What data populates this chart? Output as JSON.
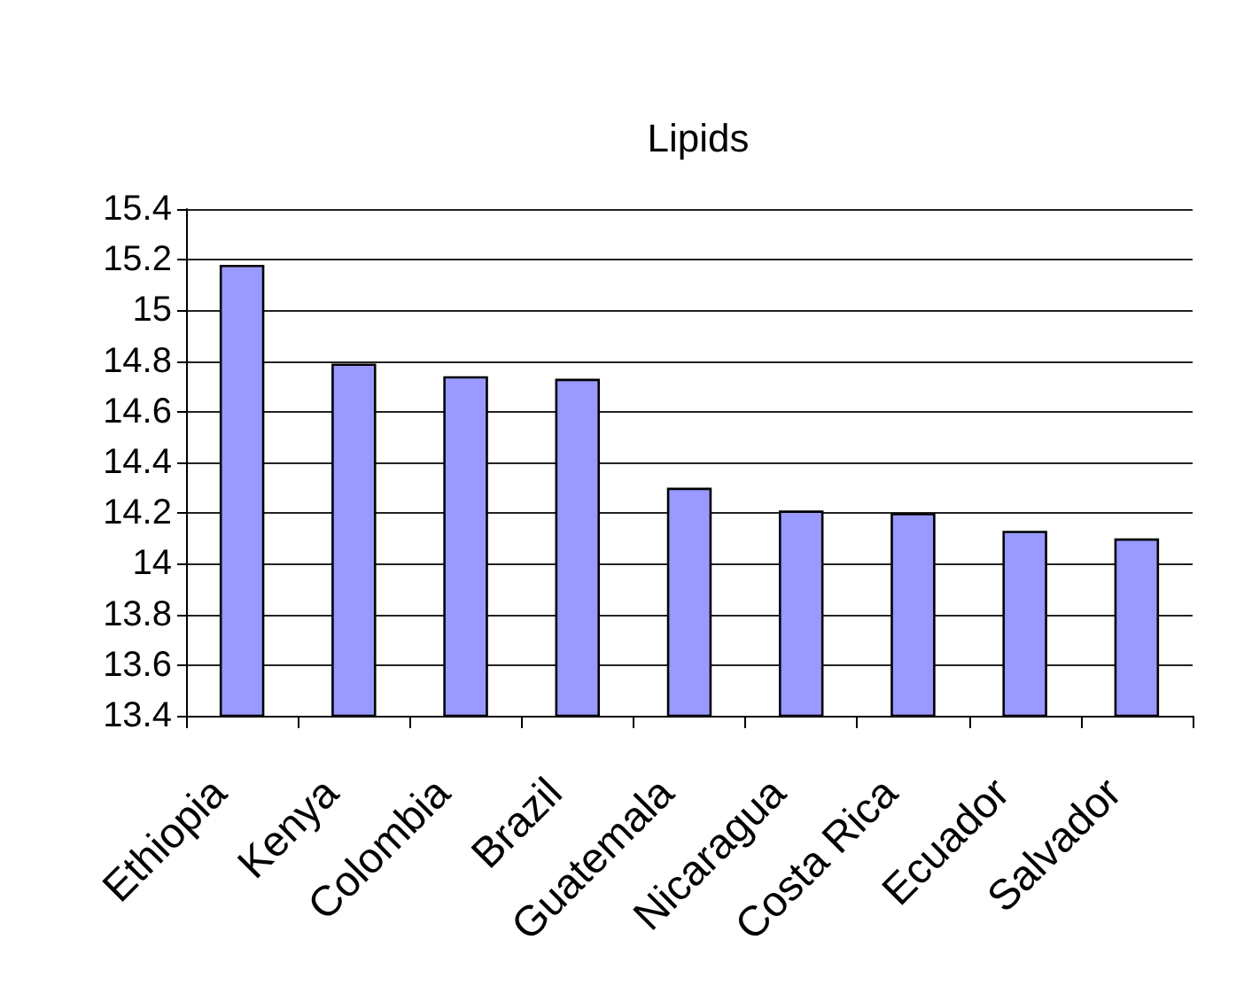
{
  "chart_data": {
    "type": "bar",
    "title": "Lipids",
    "categories": [
      "Ethiopia",
      "Kenya",
      "Colombia",
      "Brazil",
      "Guatemala",
      "Nicaragua",
      "Costa Rica",
      "Ecuador",
      "Salvador"
    ],
    "values": [
      15.18,
      14.79,
      14.74,
      14.73,
      14.3,
      14.21,
      14.2,
      14.13,
      14.1
    ],
    "color": "#9999ff",
    "ylim": [
      13.4,
      15.4
    ],
    "yticks": [
      13.4,
      13.6,
      13.8,
      14,
      14.2,
      14.4,
      14.6,
      14.8,
      15,
      15.2,
      15.4
    ],
    "grid": "y"
  }
}
